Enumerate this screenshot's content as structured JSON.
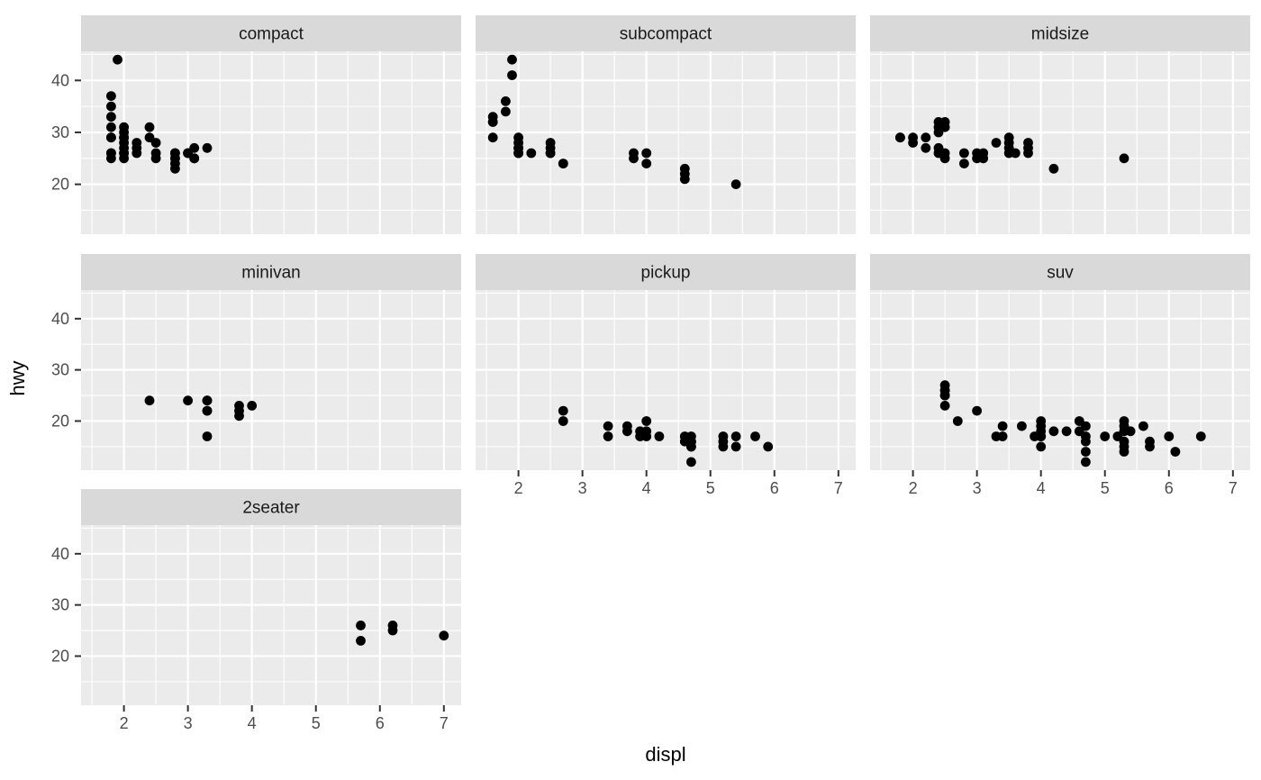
{
  "style": {
    "background": "#FFFFFF",
    "panel_bg": "#EBEBEB",
    "strip_bg": "#D9D9D9",
    "strip_text_color": "#1A1A1A",
    "grid_color": "#FFFFFF",
    "point_color": "#000000",
    "axis_tick_label_color": "#4D4D4D",
    "axis_tick_mark_color": "#333333",
    "axis_title_color": "#000000"
  },
  "chart_data": {
    "type": "scatter",
    "title": "",
    "xlabel": "displ",
    "ylabel": "hwy",
    "legend": "none",
    "grid": "white major and minor gridlines on grey panels",
    "point_shape": "filled-circle",
    "xlim": [
      1.33,
      7.27
    ],
    "ylim": [
      10.4,
      45.6
    ],
    "x_ticks": [
      2,
      3,
      4,
      5,
      6,
      7
    ],
    "y_ticks": [
      20,
      30,
      40
    ],
    "x_minor_ticks": [
      1.5,
      2.5,
      3.5,
      4.5,
      5.5,
      6.5
    ],
    "y_minor_ticks": [
      15,
      25,
      35,
      45
    ],
    "facet_layout": {
      "columns": 3,
      "rows": 3,
      "order": [
        "compact",
        "subcompact",
        "midsize",
        "minivan",
        "pickup",
        "suv",
        "2seater"
      ]
    },
    "facets": [
      {
        "label": "compact",
        "grid_position": {
          "row": 0,
          "col": 0
        },
        "points": [
          [
            1.9,
            44
          ],
          [
            1.8,
            37
          ],
          [
            1.8,
            35
          ],
          [
            1.8,
            33
          ],
          [
            1.8,
            31
          ],
          [
            1.8,
            29
          ],
          [
            1.8,
            29
          ],
          [
            1.8,
            26
          ],
          [
            1.8,
            26
          ],
          [
            1.8,
            25
          ],
          [
            2.0,
            31
          ],
          [
            2.0,
            30
          ],
          [
            2.0,
            29
          ],
          [
            2.0,
            29
          ],
          [
            2.0,
            28
          ],
          [
            2.0,
            27
          ],
          [
            2.0,
            26
          ],
          [
            2.0,
            26
          ],
          [
            2.0,
            25
          ],
          [
            2.2,
            28
          ],
          [
            2.2,
            27
          ],
          [
            2.2,
            26
          ],
          [
            2.4,
            31
          ],
          [
            2.4,
            29
          ],
          [
            2.5,
            28
          ],
          [
            2.5,
            26
          ],
          [
            2.5,
            25
          ],
          [
            2.8,
            26
          ],
          [
            2.8,
            26
          ],
          [
            2.8,
            25
          ],
          [
            2.8,
            25
          ],
          [
            2.8,
            24
          ],
          [
            2.8,
            23
          ],
          [
            3.0,
            26
          ],
          [
            3.0,
            26
          ],
          [
            3.1,
            27
          ],
          [
            3.1,
            25
          ],
          [
            3.1,
            25
          ],
          [
            3.3,
            27
          ]
        ]
      },
      {
        "label": "subcompact",
        "grid_position": {
          "row": 0,
          "col": 1
        },
        "points": [
          [
            1.6,
            33
          ],
          [
            1.6,
            32
          ],
          [
            1.6,
            32
          ],
          [
            1.6,
            29
          ],
          [
            1.8,
            36
          ],
          [
            1.8,
            34
          ],
          [
            1.9,
            44
          ],
          [
            1.9,
            41
          ],
          [
            2.0,
            29
          ],
          [
            2.0,
            28
          ],
          [
            2.0,
            27
          ],
          [
            2.0,
            27
          ],
          [
            2.0,
            26
          ],
          [
            2.0,
            26
          ],
          [
            2.2,
            26
          ],
          [
            2.5,
            28
          ],
          [
            2.5,
            27
          ],
          [
            2.5,
            26
          ],
          [
            2.5,
            26
          ],
          [
            2.7,
            24
          ],
          [
            2.7,
            24
          ],
          [
            3.8,
            26
          ],
          [
            3.8,
            25
          ],
          [
            4.0,
            26
          ],
          [
            4.0,
            24
          ],
          [
            4.6,
            23
          ],
          [
            4.6,
            22
          ],
          [
            4.6,
            21
          ],
          [
            5.4,
            20
          ]
        ]
      },
      {
        "label": "midsize",
        "grid_position": {
          "row": 0,
          "col": 2
        },
        "points": [
          [
            1.8,
            29
          ],
          [
            1.8,
            29
          ],
          [
            2.0,
            29
          ],
          [
            2.0,
            28
          ],
          [
            2.2,
            29
          ],
          [
            2.2,
            27
          ],
          [
            2.4,
            32
          ],
          [
            2.4,
            31
          ],
          [
            2.4,
            30
          ],
          [
            2.4,
            27
          ],
          [
            2.4,
            26
          ],
          [
            2.5,
            32
          ],
          [
            2.5,
            31
          ],
          [
            2.5,
            26
          ],
          [
            2.5,
            25
          ],
          [
            2.8,
            26
          ],
          [
            2.8,
            24
          ],
          [
            3.0,
            26
          ],
          [
            3.0,
            25
          ],
          [
            3.1,
            26
          ],
          [
            3.1,
            25
          ],
          [
            3.3,
            28
          ],
          [
            3.5,
            29
          ],
          [
            3.5,
            28
          ],
          [
            3.5,
            27
          ],
          [
            3.5,
            26
          ],
          [
            3.6,
            26
          ],
          [
            3.8,
            28
          ],
          [
            3.8,
            27
          ],
          [
            3.8,
            26
          ],
          [
            4.2,
            23
          ],
          [
            5.3,
            25
          ]
        ]
      },
      {
        "label": "minivan",
        "grid_position": {
          "row": 1,
          "col": 0
        },
        "points": [
          [
            2.4,
            24
          ],
          [
            3.0,
            24
          ],
          [
            3.3,
            24
          ],
          [
            3.3,
            24
          ],
          [
            3.3,
            22
          ],
          [
            3.3,
            22
          ],
          [
            3.3,
            17
          ],
          [
            3.8,
            23
          ],
          [
            3.8,
            22
          ],
          [
            3.8,
            21
          ],
          [
            4.0,
            23
          ]
        ]
      },
      {
        "label": "pickup",
        "grid_position": {
          "row": 1,
          "col": 1
        },
        "points": [
          [
            2.7,
            22
          ],
          [
            2.7,
            20
          ],
          [
            3.4,
            19
          ],
          [
            3.4,
            17
          ],
          [
            3.7,
            19
          ],
          [
            3.7,
            18
          ],
          [
            3.9,
            18
          ],
          [
            3.9,
            17
          ],
          [
            4.0,
            20
          ],
          [
            4.0,
            18
          ],
          [
            4.0,
            17
          ],
          [
            4.2,
            17
          ],
          [
            4.6,
            17
          ],
          [
            4.6,
            16
          ],
          [
            4.7,
            17
          ],
          [
            4.7,
            16
          ],
          [
            4.7,
            16
          ],
          [
            4.7,
            15
          ],
          [
            4.7,
            15
          ],
          [
            4.7,
            12
          ],
          [
            5.2,
            17
          ],
          [
            5.2,
            16
          ],
          [
            5.2,
            15
          ],
          [
            5.4,
            17
          ],
          [
            5.4,
            15
          ],
          [
            5.7,
            17
          ],
          [
            5.9,
            15
          ]
        ]
      },
      {
        "label": "suv",
        "grid_position": {
          "row": 1,
          "col": 2
        },
        "points": [
          [
            2.5,
            27
          ],
          [
            2.5,
            26
          ],
          [
            2.5,
            26
          ],
          [
            2.5,
            25
          ],
          [
            2.5,
            25
          ],
          [
            2.5,
            23
          ],
          [
            2.7,
            20
          ],
          [
            3.0,
            22
          ],
          [
            3.3,
            17
          ],
          [
            3.4,
            19
          ],
          [
            3.4,
            17
          ],
          [
            3.7,
            19
          ],
          [
            3.9,
            17
          ],
          [
            4.0,
            20
          ],
          [
            4.0,
            19
          ],
          [
            4.0,
            18
          ],
          [
            4.0,
            17
          ],
          [
            4.0,
            17
          ],
          [
            4.0,
            15
          ],
          [
            4.2,
            18
          ],
          [
            4.4,
            18
          ],
          [
            4.6,
            20
          ],
          [
            4.6,
            18
          ],
          [
            4.7,
            19
          ],
          [
            4.7,
            17
          ],
          [
            4.7,
            16
          ],
          [
            4.7,
            14
          ],
          [
            4.7,
            12
          ],
          [
            5.0,
            17
          ],
          [
            5.2,
            17
          ],
          [
            5.3,
            20
          ],
          [
            5.3,
            19
          ],
          [
            5.3,
            18
          ],
          [
            5.3,
            16
          ],
          [
            5.3,
            15
          ],
          [
            5.3,
            14
          ],
          [
            5.4,
            18
          ],
          [
            5.6,
            19
          ],
          [
            5.7,
            16
          ],
          [
            5.7,
            15
          ],
          [
            6.0,
            17
          ],
          [
            6.1,
            14
          ],
          [
            6.5,
            17
          ]
        ]
      },
      {
        "label": "2seater",
        "grid_position": {
          "row": 2,
          "col": 0
        },
        "points": [
          [
            5.7,
            26
          ],
          [
            5.7,
            23
          ],
          [
            6.2,
            26
          ],
          [
            6.2,
            25
          ],
          [
            7.0,
            24
          ]
        ]
      }
    ]
  }
}
